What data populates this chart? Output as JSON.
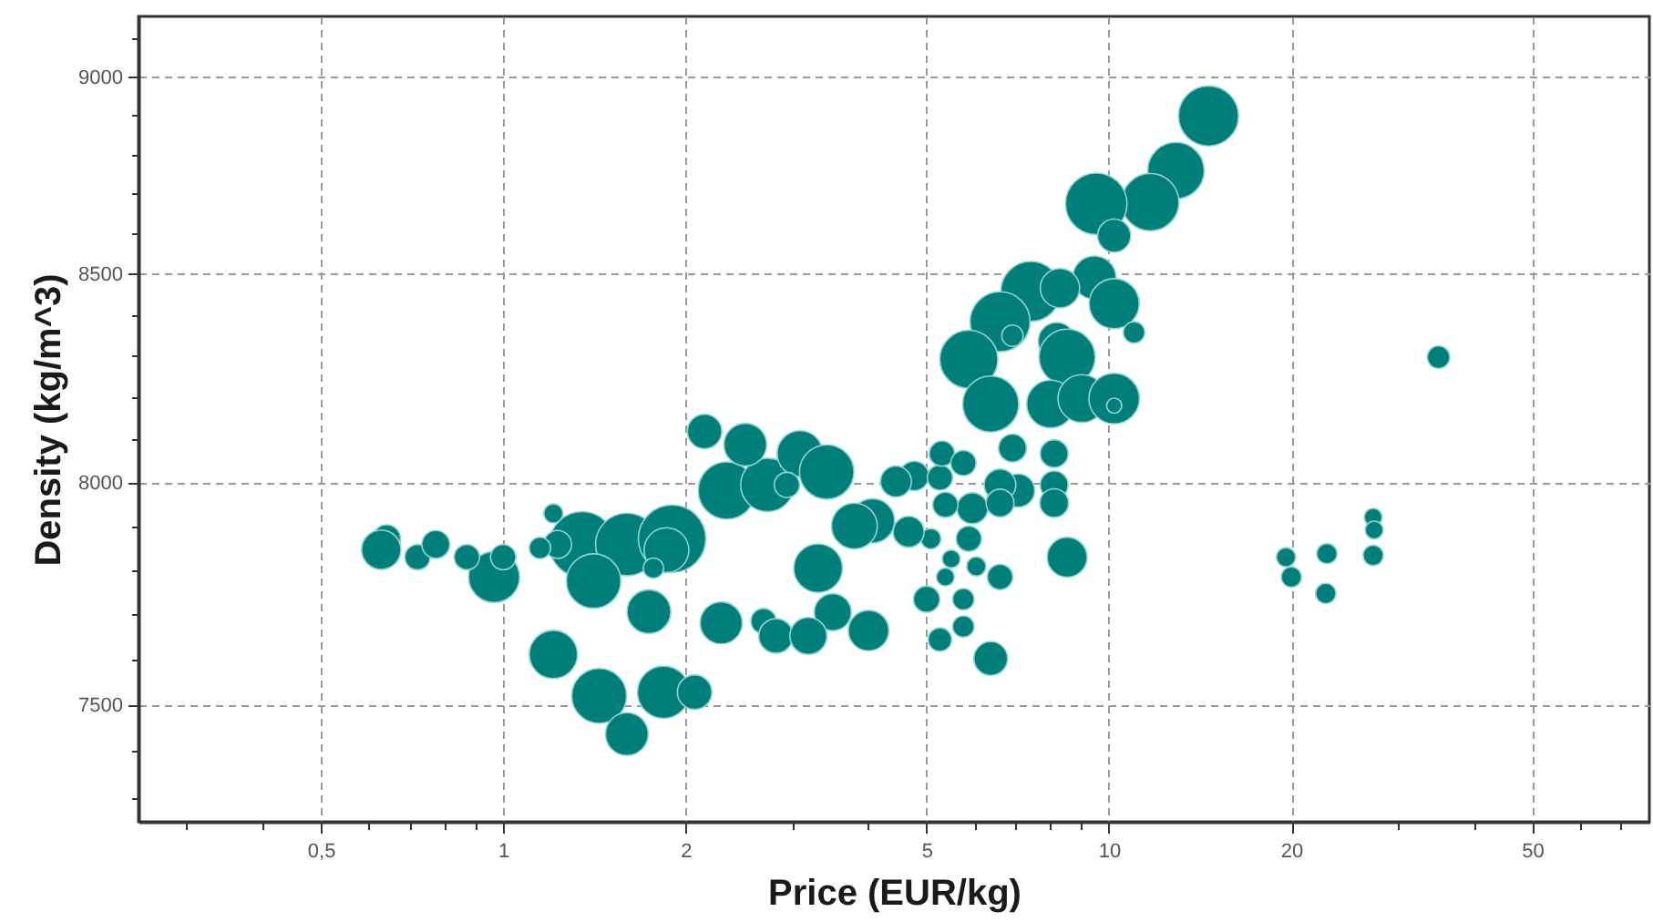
{
  "chart_data": {
    "type": "bubble",
    "xlabel": "Price (EUR/kg)",
    "ylabel": "Density (kg/m^3)",
    "color": "#007f7a",
    "log": "xy",
    "grid": true,
    "xlim": [
      0.25,
      78
    ],
    "ylim": [
      7250,
      9160
    ],
    "xticks": [
      {
        "value": 0.3,
        "label": null
      },
      {
        "value": 0.4,
        "label": null
      },
      {
        "value": 0.5,
        "label": "0,5"
      },
      {
        "value": 0.6,
        "label": null
      },
      {
        "value": 0.7,
        "label": null
      },
      {
        "value": 0.8,
        "label": null
      },
      {
        "value": 0.9,
        "label": null
      },
      1,
      2,
      {
        "value": 3,
        "label": null
      },
      {
        "value": 4,
        "label": null
      },
      5,
      {
        "value": 6,
        "label": null
      },
      {
        "value": 7,
        "label": null
      },
      {
        "value": 8,
        "label": null
      },
      {
        "value": 9,
        "label": null
      },
      10,
      20,
      {
        "value": 30,
        "label": null
      },
      {
        "value": 40,
        "label": null
      },
      50,
      {
        "value": 60,
        "label": null
      },
      {
        "value": 70,
        "label": null
      }
    ],
    "yticks": [
      {
        "value": 7300,
        "label": null
      },
      {
        "value": 7400,
        "label": null
      },
      7500,
      {
        "value": 7600,
        "label": null
      },
      {
        "value": 7700,
        "label": null
      },
      {
        "value": 7800,
        "label": null
      },
      {
        "value": 7900,
        "label": null
      },
      8000,
      {
        "value": 8100,
        "label": null
      },
      {
        "value": 8200,
        "label": null
      },
      {
        "value": 8300,
        "label": null
      },
      {
        "value": 8400,
        "label": null
      },
      8500,
      {
        "value": 8600,
        "label": null
      },
      {
        "value": 8700,
        "label": null
      },
      {
        "value": 8800,
        "label": null
      },
      {
        "value": 8900,
        "label": null
      },
      9000,
      {
        "value": 9100,
        "label": null
      }
    ],
    "x": [
      14.6,
      12.9,
      11.7,
      9.53,
      10.2,
      9.46,
      10.2,
      11.0,
      7.43,
      8.3,
      6.61,
      6.93,
      8.2,
      8.53,
      5.87,
      6.38,
      8.01,
      9.02,
      10.2,
      10.2,
      6.93,
      8.12,
      8.12,
      8.12,
      7.08,
      8.53,
      6.61,
      6.38,
      5.26,
      5.0,
      5.75,
      5.75,
      6.61,
      5.37,
      5.49,
      6.04,
      5.08,
      5.87,
      5.95,
      5.37,
      4.77,
      4.45,
      5.26,
      5.3,
      5.75,
      6.61,
      4.67,
      4.07,
      4.01,
      3.5,
      19.6,
      20.0,
      22.9,
      22.8,
      27.3,
      27.4,
      27.3,
      35.0,
      1.35,
      1.6,
      1.9,
      2.15,
      1.74,
      1.44,
      1.84,
      2.07,
      1.6,
      1.21,
      0.966,
      1.21,
      1.23,
      1.15,
      1.41,
      1.86,
      1.77,
      0.642,
      0.722,
      0.871,
      1.0,
      0.774,
      0.629,
      2.34,
      2.73,
      3.09,
      2.94,
      2.29,
      2.69,
      2.82,
      3.31,
      2.51,
      3.42,
      3.8,
      3.19
    ],
    "values": [
      8899,
      8759,
      8679,
      8675,
      8595,
      8491,
      8427,
      8357,
      8457,
      8465,
      8383,
      8349,
      8336,
      8297,
      8292,
      8185,
      8185,
      8198,
      8198,
      8181,
      8081,
      8068,
      7995,
      7953,
      7982,
      7829,
      7995,
      7602,
      7644,
      7734,
      7673,
      7734,
      7784,
      7784,
      7825,
      7808,
      7871,
      7871,
      7941,
      7949,
      8016,
      8003,
      8012,
      8068,
      8046,
      7953,
      7887,
      7912,
      7664,
      7705,
      7829,
      7784,
      7837,
      7747,
      7920,
      7891,
      7833,
      8297,
      7858,
      7858,
      7871,
      8120,
      7706,
      7520,
      7528,
      7528,
      7437,
      7611,
      7784,
      7929,
      7858,
      7850,
      7775,
      7845,
      7804,
      7871,
      7829,
      7829,
      7829,
      7858,
      7846,
      7982,
      7995,
      8068,
      7995,
      7681,
      7685,
      7652,
      7804,
      8089,
      8025,
      7900,
      7652
    ],
    "sizes": [
      0.79,
      0.7,
      0.72,
      0.83,
      0.24,
      0.41,
      0.55,
      0.1,
      0.79,
      0.34,
      0.79,
      0.1,
      0.3,
      0.69,
      0.74,
      0.69,
      0.5,
      0.5,
      0.56,
      0.05,
      0.17,
      0.17,
      0.17,
      0.18,
      0.24,
      0.35,
      0.22,
      0.25,
      0.12,
      0.15,
      0.1,
      0.1,
      0.14,
      0.07,
      0.07,
      0.08,
      0.09,
      0.14,
      0.21,
      0.14,
      0.19,
      0.21,
      0.14,
      0.14,
      0.14,
      0.17,
      0.21,
      0.43,
      0.36,
      0.3,
      0.08,
      0.09,
      0.09,
      0.09,
      0.07,
      0.07,
      0.09,
      0.11,
      0.95,
      0.86,
      1,
      0.26,
      0.42,
      0.66,
      0.6,
      0.26,
      0.4,
      0.51,
      0.57,
      0.08,
      0.17,
      0.1,
      0.65,
      0.44,
      0.09,
      0.17,
      0.14,
      0.14,
      0.14,
      0.17,
      0.34,
      0.72,
      0.63,
      0.46,
      0.14,
      0.39,
      0.14,
      0.26,
      0.52,
      0.4,
      0.65,
      0.46,
      0.3
    ]
  }
}
